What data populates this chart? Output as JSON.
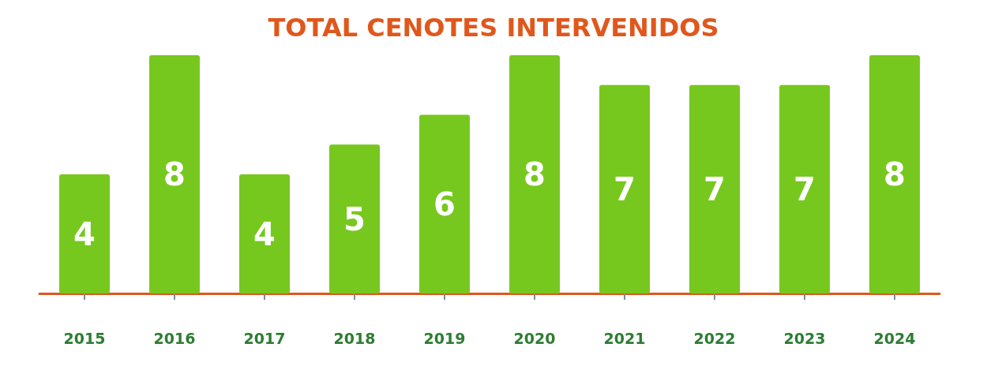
{
  "chart_data": {
    "type": "bar",
    "title": "TOTAL CENOTES INTERVENIDOS",
    "categories": [
      "2015",
      "2016",
      "2017",
      "2018",
      "2019",
      "2020",
      "2021",
      "2022",
      "2023",
      "2024"
    ],
    "values": [
      4,
      8,
      4,
      5,
      6,
      8,
      7,
      7,
      7,
      8
    ],
    "color": "#77c81e",
    "data_labels": true,
    "tick_labels": "x"
  }
}
